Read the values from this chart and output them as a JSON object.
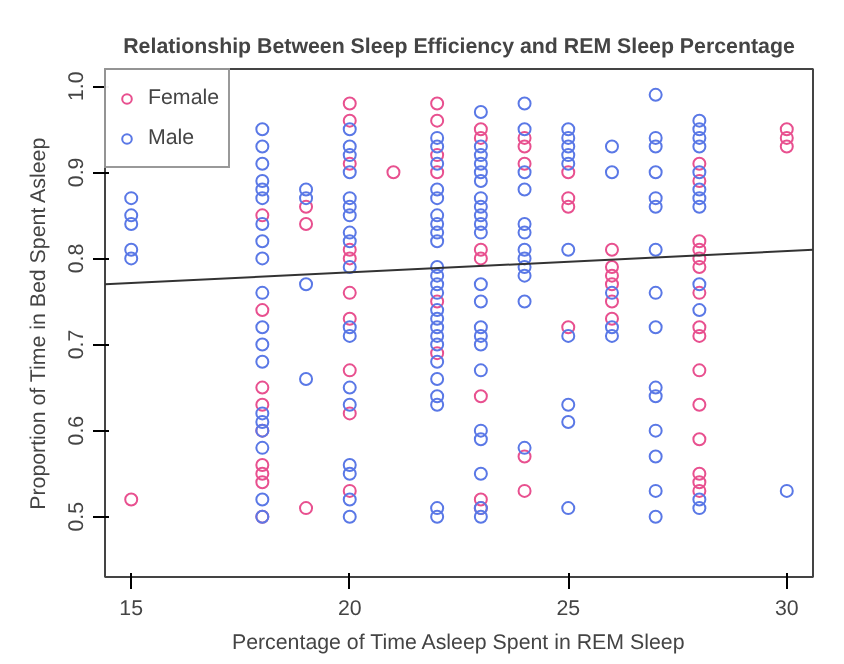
{
  "chart_data": {
    "type": "scatter",
    "title": "Relationship Between Sleep Efficiency and REM Sleep Percentage",
    "xlabel": "Percentage of Time Asleep Spent in REM Sleep",
    "ylabel": "Proportion of Time in Bed Spent Asleep",
    "xlim": [
      14.4,
      30.6
    ],
    "ylim": [
      0.43,
      1.02
    ],
    "xticks": [
      15,
      20,
      25,
      30
    ],
    "yticks": [
      0.5,
      0.6,
      0.7,
      0.8,
      0.9,
      {
        "value": 1.0,
        "label": "1.0"
      }
    ],
    "grid": false,
    "legend": "top left",
    "series": [
      {
        "name": "Female",
        "color": "#e8508f",
        "marker": "circle",
        "x": [
          15,
          18,
          18,
          18,
          18,
          18,
          18,
          18,
          18,
          18,
          19,
          19,
          19,
          20,
          20,
          20,
          20,
          20,
          20,
          20,
          20,
          20,
          20,
          21,
          22,
          22,
          22,
          22,
          22,
          22,
          23,
          23,
          23,
          23,
          23,
          23,
          23,
          24,
          24,
          24,
          24,
          24,
          25,
          25,
          25,
          25,
          26,
          26,
          26,
          26,
          26,
          26,
          28,
          28,
          28,
          28,
          28,
          28,
          28,
          28,
          28,
          28,
          28,
          28,
          28,
          28,
          28,
          30,
          30,
          30
        ],
        "values": [
          0.52,
          0.85,
          0.74,
          0.65,
          0.63,
          0.6,
          0.56,
          0.55,
          0.54,
          0.5,
          0.86,
          0.84,
          0.51,
          0.98,
          0.96,
          0.91,
          0.81,
          0.8,
          0.76,
          0.73,
          0.67,
          0.62,
          0.53,
          0.9,
          0.98,
          0.96,
          0.92,
          0.9,
          0.75,
          0.69,
          0.95,
          0.94,
          0.81,
          0.8,
          0.64,
          0.52,
          0.51,
          0.94,
          0.93,
          0.91,
          0.57,
          0.53,
          0.9,
          0.87,
          0.86,
          0.72,
          0.81,
          0.79,
          0.78,
          0.77,
          0.75,
          0.73,
          0.91,
          0.89,
          0.82,
          0.81,
          0.8,
          0.79,
          0.76,
          0.72,
          0.71,
          0.67,
          0.63,
          0.59,
          0.55,
          0.54,
          0.53,
          0.95,
          0.94,
          0.93
        ]
      },
      {
        "name": "Male",
        "color": "#5a78e6",
        "marker": "circle",
        "x": [
          15,
          15,
          15,
          15,
          15,
          18,
          18,
          18,
          18,
          18,
          18,
          18,
          18,
          18,
          18,
          18,
          18,
          18,
          18,
          18,
          18,
          18,
          18,
          18,
          19,
          19,
          19,
          19,
          20,
          20,
          20,
          20,
          20,
          20,
          20,
          20,
          20,
          20,
          20,
          20,
          20,
          20,
          20,
          20,
          20,
          20,
          22,
          22,
          22,
          22,
          22,
          22,
          22,
          22,
          22,
          22,
          22,
          22,
          22,
          22,
          22,
          22,
          22,
          22,
          22,
          22,
          22,
          22,
          22,
          22,
          23,
          23,
          23,
          23,
          23,
          23,
          23,
          23,
          23,
          23,
          23,
          23,
          23,
          23,
          23,
          23,
          23,
          23,
          23,
          23,
          23,
          23,
          24,
          24,
          24,
          24,
          24,
          24,
          24,
          24,
          24,
          24,
          24,
          24,
          25,
          25,
          25,
          25,
          25,
          25,
          25,
          25,
          25,
          25,
          26,
          26,
          26,
          26,
          26,
          27,
          27,
          27,
          27,
          27,
          27,
          27,
          27,
          27,
          27,
          27,
          27,
          27,
          27,
          27,
          28,
          28,
          28,
          28,
          28,
          28,
          28,
          28,
          28,
          28,
          28,
          28,
          30
        ],
        "values": [
          0.87,
          0.85,
          0.84,
          0.81,
          0.8,
          0.95,
          0.93,
          0.91,
          0.89,
          0.88,
          0.87,
          0.84,
          0.82,
          0.8,
          0.76,
          0.72,
          0.7,
          0.68,
          0.62,
          0.61,
          0.6,
          0.58,
          0.52,
          0.5,
          0.88,
          0.87,
          0.77,
          0.66,
          0.95,
          0.93,
          0.92,
          0.9,
          0.87,
          0.86,
          0.85,
          0.83,
          0.82,
          0.79,
          0.72,
          0.71,
          0.65,
          0.63,
          0.56,
          0.55,
          0.52,
          0.5,
          0.94,
          0.93,
          0.91,
          0.88,
          0.87,
          0.85,
          0.84,
          0.83,
          0.82,
          0.79,
          0.78,
          0.77,
          0.76,
          0.74,
          0.73,
          0.72,
          0.71,
          0.7,
          0.68,
          0.66,
          0.64,
          0.63,
          0.51,
          0.5,
          0.97,
          0.93,
          0.92,
          0.91,
          0.9,
          0.89,
          0.87,
          0.86,
          0.85,
          0.84,
          0.83,
          0.77,
          0.75,
          0.72,
          0.71,
          0.7,
          0.67,
          0.6,
          0.59,
          0.55,
          0.51,
          0.5,
          0.98,
          0.95,
          0.9,
          0.88,
          0.84,
          0.83,
          0.81,
          0.8,
          0.79,
          0.78,
          0.75,
          0.58,
          0.95,
          0.94,
          0.93,
          0.92,
          0.91,
          0.81,
          0.71,
          0.63,
          0.61,
          0.51,
          0.93,
          0.9,
          0.76,
          0.72,
          0.71,
          0.99,
          0.94,
          0.93,
          0.9,
          0.87,
          0.86,
          0.81,
          0.76,
          0.72,
          0.65,
          0.64,
          0.6,
          0.57,
          0.53,
          0.5,
          0.96,
          0.95,
          0.94,
          0.93,
          0.9,
          0.88,
          0.87,
          0.86,
          0.77,
          0.74,
          0.52,
          0.51,
          0.53
        ]
      },
      {
        "type": "line",
        "color": "#333333",
        "marker": "none",
        "x": [
          14.4,
          30.6
        ],
        "values": [
          0.77,
          0.81
        ]
      }
    ]
  }
}
